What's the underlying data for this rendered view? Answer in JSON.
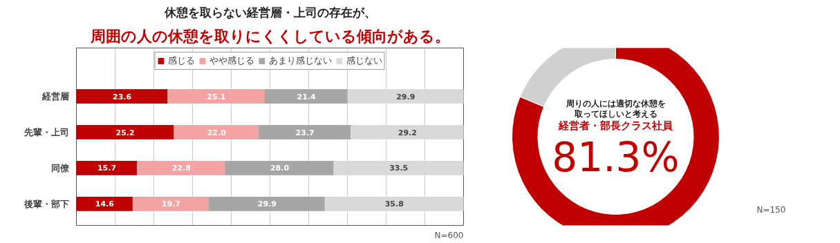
{
  "chart_data": [
    {
      "type": "bar",
      "orientation": "horizontal",
      "stacked": true,
      "title": "休憩を取らない経営層・上司の存在が、",
      "subtitle": "周囲の人の休憩を取りにくくしている傾向がある。",
      "categories": [
        "経営層",
        "先輩・上司",
        "同僚",
        "後輩・部下"
      ],
      "series": [
        {
          "name": "感じる",
          "color": "#c00000",
          "values": [
            23.6,
            25.2,
            15.7,
            14.6
          ],
          "value_labels": [
            "23.6",
            "25.2",
            "15.7",
            "14.6"
          ]
        },
        {
          "name": "やや感じる",
          "color": "#f4a3a3",
          "values": [
            25.1,
            22.0,
            22.8,
            19.7
          ],
          "value_labels": [
            "25.1",
            "22.0",
            "22.8",
            "19.7"
          ]
        },
        {
          "name": "あまり感じない",
          "color": "#a6a6a6",
          "values": [
            21.4,
            23.7,
            28.0,
            29.9
          ],
          "value_labels": [
            "21.4",
            "23.7",
            "28.0",
            "29.9"
          ]
        },
        {
          "name": "感じない",
          "color": "#d9d9d9",
          "values": [
            29.9,
            29.2,
            33.5,
            35.8
          ],
          "value_labels": [
            "29.9",
            "29.2",
            "33.5",
            "35.8"
          ]
        }
      ],
      "xlim": [
        0,
        100
      ],
      "xticks": [
        {
          "value": 0,
          "label": null
        },
        {
          "value": 10,
          "label": null
        },
        {
          "value": 20,
          "label": null
        },
        {
          "value": 30,
          "label": null
        },
        {
          "value": 40,
          "label": null
        },
        {
          "value": 50,
          "label": null
        },
        {
          "value": 60,
          "label": null
        },
        {
          "value": 70,
          "label": null
        },
        {
          "value": 80,
          "label": null
        },
        {
          "value": 90,
          "label": null
        },
        {
          "value": 100,
          "label": null
        }
      ],
      "tick_labels": "y",
      "grid": "x",
      "legend": "top",
      "annotations": [
        "N=600"
      ]
    },
    {
      "type": "donut",
      "categories": [
        null,
        null
      ],
      "values": [
        81.3,
        18.7
      ],
      "colors": [
        "#c00000",
        "#d0d0d0"
      ],
      "value_labels": [
        "81.3%",
        null
      ],
      "annotations": [
        "周りの人には適切な休憩を",
        "取ってほしいと考える",
        "経営者・部長クラス社員",
        "N=150"
      ]
    }
  ]
}
